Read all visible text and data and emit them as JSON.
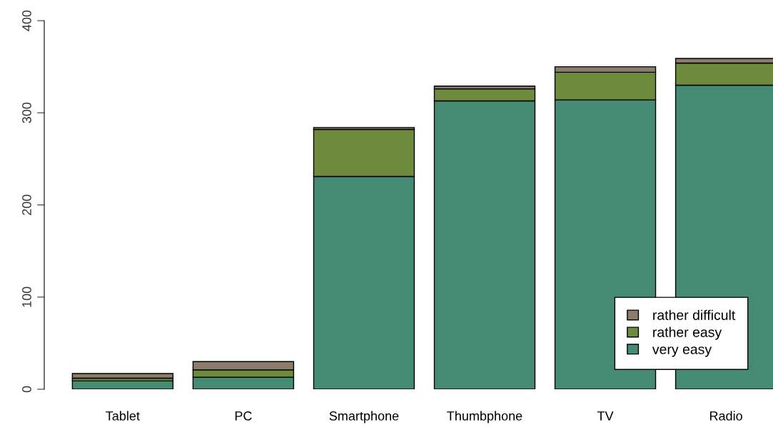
{
  "chart_data": {
    "type": "bar",
    "stacked": true,
    "categories": [
      "Tablet",
      "PC",
      "Smartphone",
      "Thumbphone",
      "TV",
      "Radio"
    ],
    "series": [
      {
        "name": "very easy",
        "color": "#458b74",
        "values": [
          9,
          13,
          231,
          313,
          314,
          330
        ]
      },
      {
        "name": "rather easy",
        "color": "#6e8b3d",
        "values": [
          3,
          8,
          51,
          13,
          30,
          24
        ]
      },
      {
        "name": "rather difficult",
        "color": "#8b7d6b",
        "values": [
          5,
          9,
          2,
          3,
          6,
          5
        ]
      }
    ],
    "ylim": [
      0,
      400
    ],
    "yticks": [
      0,
      100,
      200,
      300,
      400
    ],
    "legend": "bottom right",
    "grid": false
  }
}
